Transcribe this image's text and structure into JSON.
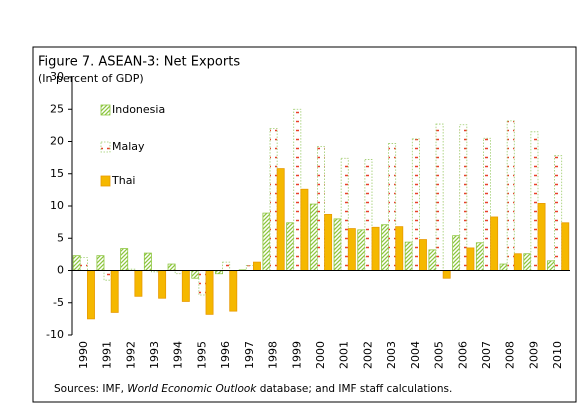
{
  "chart_data": {
    "type": "bar",
    "title": "Figure 7. ASEAN-3: Net Exports",
    "subtitle": "(In percent of GDP)",
    "categories": [
      "1990",
      "1991",
      "1992",
      "1993",
      "1994",
      "1995",
      "1996",
      "1997",
      "1998",
      "1999",
      "2000",
      "2001",
      "2002",
      "2003",
      "2004",
      "2005",
      "2006",
      "2007",
      "2008",
      "2009",
      "2010"
    ],
    "series": [
      {
        "name": "Indonesia",
        "color": "#8dc63f",
        "values": [
          2.3,
          2.3,
          3.4,
          2.7,
          1.0,
          -1.2,
          -0.5,
          0.1,
          8.9,
          7.4,
          10.3,
          8.0,
          6.3,
          7.1,
          4.4,
          3.2,
          5.4,
          4.3,
          1.0,
          2.6,
          1.5
        ]
      },
      {
        "name": "Malay",
        "color": "#e8402a",
        "values": [
          2.0,
          -1.5,
          0.2,
          -0.2,
          -0.5,
          -3.8,
          1.3,
          0.8,
          22.0,
          25.0,
          19.2,
          17.4,
          17.2,
          19.7,
          20.4,
          22.7,
          22.6,
          20.5,
          23.2,
          21.5,
          17.8
        ]
      },
      {
        "name": "Thai",
        "color": "#f5b800",
        "values": [
          -7.5,
          -6.5,
          -4.0,
          -4.3,
          -4.8,
          -6.8,
          -6.3,
          1.3,
          15.8,
          12.6,
          8.7,
          6.5,
          6.7,
          6.8,
          4.8,
          -1.2,
          3.5,
          8.3,
          2.6,
          10.4,
          7.4
        ]
      }
    ],
    "ylim": [
      -10,
      30
    ],
    "yticks": [
      -10,
      -5,
      0,
      5,
      10,
      15,
      20,
      25,
      30
    ],
    "legend": "upper left",
    "source": [
      "Sources: IMF, ",
      "World Economic Outlook",
      " database; and IMF staff calculations."
    ]
  }
}
